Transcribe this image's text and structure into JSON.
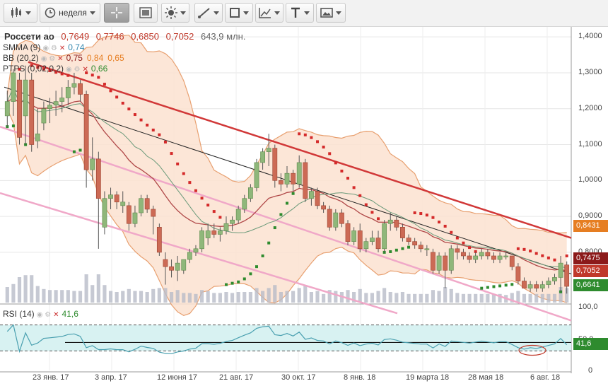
{
  "toolbar": {
    "period_label": "неделя",
    "items": [
      {
        "name": "candles-icon"
      },
      {
        "name": "clock-icon"
      },
      {
        "name": "crosshair-icon"
      },
      {
        "name": "chart-frame-icon"
      },
      {
        "name": "indicators-icon"
      },
      {
        "name": "line-draw-icon"
      },
      {
        "name": "shapes-icon"
      },
      {
        "name": "fibonacci-icon"
      },
      {
        "name": "text-icon"
      },
      {
        "name": "image-icon"
      }
    ]
  },
  "legend": {
    "ticker": "Россети ао",
    "open": "0,7649",
    "high": "0,7746",
    "low": "0,6850",
    "close": "0,7052",
    "volume": "643,9 млн.",
    "smma_name": "SMMA (9)",
    "smma_value": "0,74",
    "bb_name": "BB (20,2)",
    "bb_values": [
      "0,75",
      "0,84",
      "0,65"
    ],
    "ptps_name": "PTPS (0,02,0,2)",
    "ptps_value": "0,66",
    "rsi_name": "RSI (14)",
    "rsi_value": "41,6"
  },
  "price_boxes": [
    {
      "value": "0,8431",
      "color": "#e67e22"
    },
    {
      "value": "0,7475",
      "color": "#8b1a1a"
    },
    {
      "value": "0,7052",
      "color": "#c0392b"
    },
    {
      "value": "0,6641",
      "color": "#2e8b2e"
    },
    {
      "value": "41,6",
      "color": "#2e8b2e"
    }
  ],
  "colors": {
    "bull": "#8fb77a",
    "bear": "#cc6a55",
    "bb_fill": "#fbe2d0",
    "bb_line": "#e8a070",
    "smma": "#b04848",
    "bb_mid": "#6b9a7a",
    "sar_up": "#2e8b2e",
    "sar_down": "#d42a2a",
    "trend_red": "#d13838",
    "trend_pink": "#f0a8c8",
    "trend_black": "#222222",
    "volume": "#b8bcc8",
    "rsi": "#4aa0b0",
    "rsi_band": "#d8f2f2"
  },
  "chart_data": {
    "type": "candlestick",
    "period": "неделя",
    "x_tick_labels": [
      "23 янв. 17",
      "3 апр. 17",
      "12 июня 17",
      "21 авг. 17",
      "30 окт. 17",
      "8 янв. 18",
      "19 марта 18",
      "28 мая 18",
      "6 авг. 18"
    ],
    "y_ticks": [
      "1,4000",
      "1,3000",
      "1,2000",
      "1,1000",
      "1,0000",
      "0,9000",
      "0,8000"
    ],
    "ylim": [
      0.66,
      1.42
    ],
    "rsi_ticks": [
      "100,0",
      "50,0",
      "0"
    ],
    "rsi_levels": [
      30,
      70
    ],
    "candles": [
      {
        "o": 1.18,
        "h": 1.25,
        "l": 1.15,
        "c": 1.22
      },
      {
        "o": 1.22,
        "h": 1.31,
        "l": 1.18,
        "c": 1.3
      },
      {
        "o": 1.28,
        "h": 1.3,
        "l": 1.1,
        "c": 1.12
      },
      {
        "o": 1.18,
        "h": 1.32,
        "l": 1.1,
        "c": 1.28
      },
      {
        "o": 1.28,
        "h": 1.3,
        "l": 1.08,
        "c": 1.1
      },
      {
        "o": 1.11,
        "h": 1.2,
        "l": 1.09,
        "c": 1.13
      },
      {
        "o": 1.16,
        "h": 1.22,
        "l": 1.14,
        "c": 1.2
      },
      {
        "o": 1.2,
        "h": 1.23,
        "l": 1.16,
        "c": 1.21
      },
      {
        "o": 1.21,
        "h": 1.25,
        "l": 1.18,
        "c": 1.22
      },
      {
        "o": 1.22,
        "h": 1.26,
        "l": 1.19,
        "c": 1.23
      },
      {
        "o": 1.23,
        "h": 1.28,
        "l": 1.21,
        "c": 1.26
      },
      {
        "o": 1.26,
        "h": 1.3,
        "l": 1.24,
        "c": 1.27
      },
      {
        "o": 1.27,
        "h": 1.28,
        "l": 1.22,
        "c": 1.24
      },
      {
        "o": 1.24,
        "h": 1.25,
        "l": 0.98,
        "c": 1.03
      },
      {
        "o": 1.03,
        "h": 1.12,
        "l": 1.0,
        "c": 1.06
      },
      {
        "o": 1.06,
        "h": 1.08,
        "l": 0.81,
        "c": 0.95
      },
      {
        "o": 0.87,
        "h": 0.97,
        "l": 0.85,
        "c": 0.95
      },
      {
        "o": 0.95,
        "h": 0.98,
        "l": 0.92,
        "c": 0.96
      },
      {
        "o": 0.96,
        "h": 0.97,
        "l": 0.92,
        "c": 0.94
      },
      {
        "o": 0.93,
        "h": 0.97,
        "l": 0.91,
        "c": 0.94
      },
      {
        "o": 0.93,
        "h": 0.94,
        "l": 0.86,
        "c": 0.88
      },
      {
        "o": 0.88,
        "h": 0.93,
        "l": 0.87,
        "c": 0.91
      },
      {
        "o": 0.91,
        "h": 0.96,
        "l": 0.9,
        "c": 0.95
      },
      {
        "o": 0.95,
        "h": 0.96,
        "l": 0.91,
        "c": 0.92
      },
      {
        "o": 0.92,
        "h": 0.93,
        "l": 0.85,
        "c": 0.9
      },
      {
        "o": 0.87,
        "h": 0.88,
        "l": 0.79,
        "c": 0.8
      },
      {
        "o": 0.78,
        "h": 0.8,
        "l": 0.71,
        "c": 0.76
      },
      {
        "o": 0.76,
        "h": 0.78,
        "l": 0.73,
        "c": 0.75
      },
      {
        "o": 0.75,
        "h": 0.79,
        "l": 0.72,
        "c": 0.77
      },
      {
        "o": 0.75,
        "h": 0.78,
        "l": 0.74,
        "c": 0.78
      },
      {
        "o": 0.78,
        "h": 0.81,
        "l": 0.77,
        "c": 0.8
      },
      {
        "o": 0.8,
        "h": 0.82,
        "l": 0.79,
        "c": 0.81
      },
      {
        "o": 0.81,
        "h": 0.87,
        "l": 0.8,
        "c": 0.86
      },
      {
        "o": 0.84,
        "h": 0.88,
        "l": 0.82,
        "c": 0.86
      },
      {
        "o": 0.86,
        "h": 0.88,
        "l": 0.84,
        "c": 0.85
      },
      {
        "o": 0.85,
        "h": 0.87,
        "l": 0.83,
        "c": 0.86
      },
      {
        "o": 0.86,
        "h": 0.9,
        "l": 0.85,
        "c": 0.88
      },
      {
        "o": 0.88,
        "h": 0.9,
        "l": 0.86,
        "c": 0.89
      },
      {
        "o": 0.89,
        "h": 0.93,
        "l": 0.88,
        "c": 0.92
      },
      {
        "o": 0.92,
        "h": 0.96,
        "l": 0.91,
        "c": 0.95
      },
      {
        "o": 0.95,
        "h": 0.99,
        "l": 0.94,
        "c": 0.98
      },
      {
        "o": 0.98,
        "h": 1.06,
        "l": 0.97,
        "c": 1.05
      },
      {
        "o": 1.05,
        "h": 1.09,
        "l": 1.03,
        "c": 1.08
      },
      {
        "o": 1.08,
        "h": 1.13,
        "l": 1.04,
        "c": 1.09
      },
      {
        "o": 1.09,
        "h": 1.1,
        "l": 0.98,
        "c": 1.0
      },
      {
        "o": 1.0,
        "h": 1.02,
        "l": 0.97,
        "c": 0.99
      },
      {
        "o": 0.99,
        "h": 1.04,
        "l": 0.98,
        "c": 1.02
      },
      {
        "o": 1.02,
        "h": 1.03,
        "l": 0.97,
        "c": 0.99
      },
      {
        "o": 0.99,
        "h": 1.07,
        "l": 0.98,
        "c": 1.05
      },
      {
        "o": 1.05,
        "h": 1.06,
        "l": 0.94,
        "c": 0.95
      },
      {
        "o": 0.95,
        "h": 0.98,
        "l": 0.93,
        "c": 0.97
      },
      {
        "o": 0.97,
        "h": 0.98,
        "l": 0.92,
        "c": 0.93
      },
      {
        "o": 0.93,
        "h": 0.94,
        "l": 0.91,
        "c": 0.92
      },
      {
        "o": 0.92,
        "h": 0.93,
        "l": 0.86,
        "c": 0.87
      },
      {
        "o": 0.87,
        "h": 0.92,
        "l": 0.86,
        "c": 0.91
      },
      {
        "o": 0.91,
        "h": 0.92,
        "l": 0.87,
        "c": 0.88
      },
      {
        "o": 0.88,
        "h": 0.89,
        "l": 0.82,
        "c": 0.83
      },
      {
        "o": 0.83,
        "h": 0.87,
        "l": 0.82,
        "c": 0.86
      },
      {
        "o": 0.86,
        "h": 0.88,
        "l": 0.8,
        "c": 0.81
      },
      {
        "o": 0.81,
        "h": 0.84,
        "l": 0.8,
        "c": 0.83
      },
      {
        "o": 0.83,
        "h": 0.86,
        "l": 0.82,
        "c": 0.84
      },
      {
        "o": 0.84,
        "h": 0.86,
        "l": 0.8,
        "c": 0.81
      },
      {
        "o": 0.81,
        "h": 0.89,
        "l": 0.8,
        "c": 0.88
      },
      {
        "o": 0.88,
        "h": 0.91,
        "l": 0.86,
        "c": 0.89
      },
      {
        "o": 0.89,
        "h": 0.9,
        "l": 0.86,
        "c": 0.87
      },
      {
        "o": 0.87,
        "h": 0.88,
        "l": 0.83,
        "c": 0.84
      },
      {
        "o": 0.84,
        "h": 0.85,
        "l": 0.82,
        "c": 0.83
      },
      {
        "o": 0.83,
        "h": 0.84,
        "l": 0.81,
        "c": 0.82
      },
      {
        "o": 0.82,
        "h": 0.83,
        "l": 0.8,
        "c": 0.81
      },
      {
        "o": 0.81,
        "h": 0.82,
        "l": 0.79,
        "c": 0.81
      },
      {
        "o": 0.8,
        "h": 0.81,
        "l": 0.74,
        "c": 0.75
      },
      {
        "o": 0.75,
        "h": 0.8,
        "l": 0.74,
        "c": 0.79
      },
      {
        "o": 0.79,
        "h": 0.8,
        "l": 0.7,
        "c": 0.75
      },
      {
        "o": 0.75,
        "h": 0.82,
        "l": 0.74,
        "c": 0.81
      },
      {
        "o": 0.81,
        "h": 0.82,
        "l": 0.78,
        "c": 0.8
      },
      {
        "o": 0.8,
        "h": 0.81,
        "l": 0.78,
        "c": 0.79
      },
      {
        "o": 0.79,
        "h": 0.8,
        "l": 0.77,
        "c": 0.78
      },
      {
        "o": 0.78,
        "h": 0.8,
        "l": 0.77,
        "c": 0.79
      },
      {
        "o": 0.79,
        "h": 0.81,
        "l": 0.78,
        "c": 0.8
      },
      {
        "o": 0.8,
        "h": 0.81,
        "l": 0.78,
        "c": 0.79
      },
      {
        "o": 0.79,
        "h": 0.8,
        "l": 0.77,
        "c": 0.78
      },
      {
        "o": 0.78,
        "h": 0.8,
        "l": 0.77,
        "c": 0.79
      },
      {
        "o": 0.79,
        "h": 0.8,
        "l": 0.78,
        "c": 0.79
      },
      {
        "o": 0.79,
        "h": 0.79,
        "l": 0.75,
        "c": 0.76
      },
      {
        "o": 0.76,
        "h": 0.77,
        "l": 0.71,
        "c": 0.72
      },
      {
        "o": 0.72,
        "h": 0.73,
        "l": 0.7,
        "c": 0.7
      },
      {
        "o": 0.7,
        "h": 0.72,
        "l": 0.69,
        "c": 0.71
      },
      {
        "o": 0.71,
        "h": 0.72,
        "l": 0.69,
        "c": 0.7
      },
      {
        "o": 0.7,
        "h": 0.72,
        "l": 0.69,
        "c": 0.71
      },
      {
        "o": 0.71,
        "h": 0.73,
        "l": 0.7,
        "c": 0.72
      },
      {
        "o": 0.72,
        "h": 0.74,
        "l": 0.71,
        "c": 0.73
      },
      {
        "o": 0.73,
        "h": 0.79,
        "l": 0.69,
        "c": 0.77
      },
      {
        "o": 0.7649,
        "h": 0.7746,
        "l": 0.685,
        "c": 0.7052
      }
    ]
  }
}
